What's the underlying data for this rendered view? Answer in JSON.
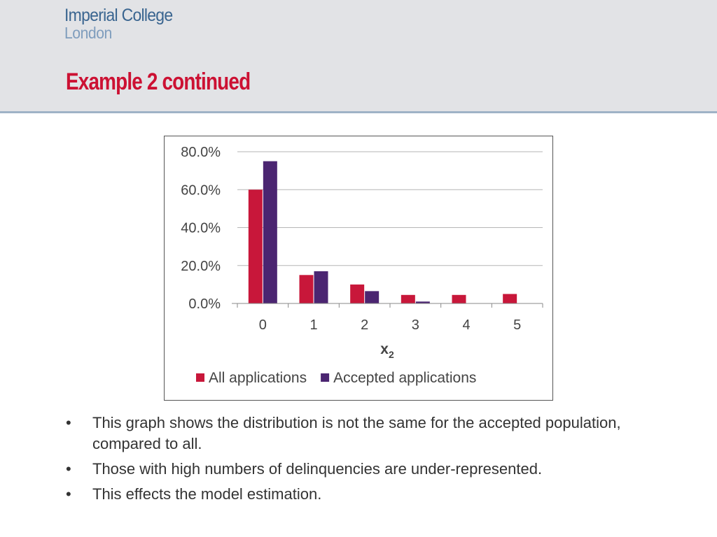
{
  "header": {
    "logo_line1": "Imperial College",
    "logo_line2": "London",
    "title": "Example 2 continued"
  },
  "colors": {
    "title": "#cc1133",
    "logo_primary": "#3a6590",
    "logo_secondary": "#7f9dbd",
    "series_all": "#c8173a",
    "series_accepted": "#4b2571"
  },
  "chart_data": {
    "type": "bar",
    "categories": [
      "0",
      "1",
      "2",
      "3",
      "4",
      "5"
    ],
    "series": [
      {
        "name": "All applications",
        "values": [
          60.0,
          15.0,
          10.0,
          4.5,
          4.5,
          5.0
        ]
      },
      {
        "name": "Accepted applications",
        "values": [
          75.0,
          17.0,
          6.5,
          1.0,
          0.0,
          0.0
        ]
      }
    ],
    "ylim": [
      0,
      80
    ],
    "yticks": [
      "0.0%",
      "20.0%",
      "40.0%",
      "60.0%",
      "80.0%"
    ],
    "xlabel": "x",
    "xlabel_subscript": "2",
    "ylabel": "",
    "title": "",
    "grid": true,
    "legend_position": "bottom"
  },
  "bullets": [
    {
      "marker": "•",
      "text": "This graph shows the distribution is not the same for the accepted population, compared to all."
    },
    {
      "marker": "•",
      "text": "Those with high numbers of delinquencies are under-represented."
    },
    {
      "marker": "•",
      "text": "This effects the model estimation."
    }
  ]
}
